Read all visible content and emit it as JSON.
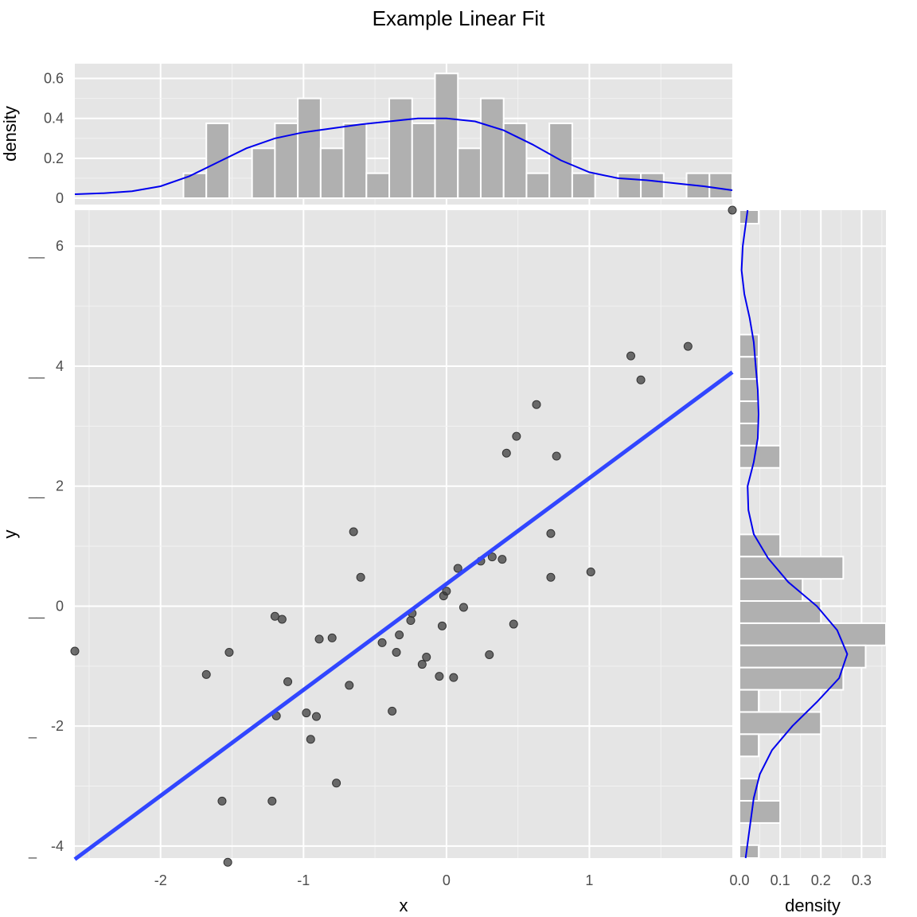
{
  "chart_data": [
    {
      "type": "scatter",
      "panel": "main",
      "title": "Example Linear Fit",
      "xlabel": "x",
      "ylabel": "y",
      "xlim": [
        -2.6,
        2.0
      ],
      "ylim": [
        -4.2,
        6.6
      ],
      "x_ticks": [
        -2,
        -1,
        0,
        1
      ],
      "y_ticks": [
        -4,
        -2,
        0,
        2,
        4,
        6
      ],
      "x_tick_labels": [
        "-2",
        "-1",
        "0",
        "1"
      ],
      "y_tick_labels": [
        "-4",
        "-2",
        "0",
        "2",
        "4",
        "6"
      ],
      "y_tick_prefix": [
        "_",
        "_",
        "__",
        "__",
        "__",
        "__"
      ],
      "grid": true,
      "point_color": "#333333",
      "points": [
        {
          "x": -2.6,
          "y": -0.75
        },
        {
          "x": -1.68,
          "y": -1.14
        },
        {
          "x": -1.52,
          "y": -0.77
        },
        {
          "x": -1.57,
          "y": -3.25
        },
        {
          "x": -1.53,
          "y": -4.27
        },
        {
          "x": -1.22,
          "y": -3.25
        },
        {
          "x": -1.2,
          "y": -0.17
        },
        {
          "x": -1.15,
          "y": -0.22
        },
        {
          "x": -1.11,
          "y": -1.26
        },
        {
          "x": -1.19,
          "y": -1.83
        },
        {
          "x": -0.98,
          "y": -1.78
        },
        {
          "x": -0.95,
          "y": -2.22
        },
        {
          "x": -0.91,
          "y": -1.84
        },
        {
          "x": -0.89,
          "y": -0.55
        },
        {
          "x": -0.8,
          "y": -0.53
        },
        {
          "x": -0.77,
          "y": -2.95
        },
        {
          "x": -0.68,
          "y": -1.32
        },
        {
          "x": -0.65,
          "y": 1.24
        },
        {
          "x": -0.6,
          "y": 0.48
        },
        {
          "x": -0.45,
          "y": -0.61
        },
        {
          "x": -0.38,
          "y": -1.75
        },
        {
          "x": -0.35,
          "y": -0.77
        },
        {
          "x": -0.33,
          "y": -0.48
        },
        {
          "x": -0.25,
          "y": -0.24
        },
        {
          "x": -0.24,
          "y": -0.12
        },
        {
          "x": -0.17,
          "y": -0.97
        },
        {
          "x": -0.14,
          "y": -0.85
        },
        {
          "x": -0.05,
          "y": -1.17
        },
        {
          "x": -0.03,
          "y": -0.33
        },
        {
          "x": -0.02,
          "y": 0.17
        },
        {
          "x": 0.0,
          "y": 0.25
        },
        {
          "x": 0.05,
          "y": -1.19
        },
        {
          "x": 0.08,
          "y": 0.63
        },
        {
          "x": 0.12,
          "y": -0.02
        },
        {
          "x": 0.24,
          "y": 0.75
        },
        {
          "x": 0.3,
          "y": -0.81
        },
        {
          "x": 0.32,
          "y": 0.82
        },
        {
          "x": 0.39,
          "y": 0.78
        },
        {
          "x": 0.42,
          "y": 2.55
        },
        {
          "x": 0.47,
          "y": -0.3
        },
        {
          "x": 0.49,
          "y": 2.83
        },
        {
          "x": 0.63,
          "y": 3.36
        },
        {
          "x": 0.73,
          "y": 1.21
        },
        {
          "x": 0.73,
          "y": 0.48
        },
        {
          "x": 0.77,
          "y": 2.5
        },
        {
          "x": 1.01,
          "y": 0.57
        },
        {
          "x": 1.29,
          "y": 4.17
        },
        {
          "x": 1.36,
          "y": 3.77
        },
        {
          "x": 1.69,
          "y": 4.33
        },
        {
          "x": 2.0,
          "y": 6.6
        }
      ],
      "fit_line": {
        "color": "#3146ff",
        "x": [
          -2.6,
          2.0
        ],
        "y": [
          -4.22,
          3.9
        ]
      }
    },
    {
      "type": "bar",
      "panel": "top-marginal",
      "ylabel": "density",
      "xlim": [
        -2.6,
        2.0
      ],
      "ylim": [
        0,
        0.65
      ],
      "y_ticks": [
        0,
        0.2,
        0.4,
        0.6
      ],
      "y_tick_labels": [
        "0",
        "0.2",
        "0.4",
        "0.6"
      ],
      "bin_width": 0.16,
      "bar_color": "#b0b0b0",
      "bins": [
        {
          "x": -1.76,
          "density": 0.125
        },
        {
          "x": -1.6,
          "density": 0.375
        },
        {
          "x": -1.28,
          "density": 0.25
        },
        {
          "x": -1.12,
          "density": 0.375
        },
        {
          "x": -0.96,
          "density": 0.5
        },
        {
          "x": -0.8,
          "density": 0.25
        },
        {
          "x": -0.64,
          "density": 0.375
        },
        {
          "x": -0.48,
          "density": 0.125
        },
        {
          "x": -0.32,
          "density": 0.5
        },
        {
          "x": -0.16,
          "density": 0.375
        },
        {
          "x": 0.0,
          "density": 0.625
        },
        {
          "x": 0.16,
          "density": 0.25
        },
        {
          "x": 0.32,
          "density": 0.5
        },
        {
          "x": 0.48,
          "density": 0.375
        },
        {
          "x": 0.64,
          "density": 0.125
        },
        {
          "x": 0.8,
          "density": 0.375
        },
        {
          "x": 0.96,
          "density": 0.125
        },
        {
          "x": 1.28,
          "density": 0.125
        },
        {
          "x": 1.44,
          "density": 0.125
        },
        {
          "x": 1.76,
          "density": 0.125
        },
        {
          "x": 1.92,
          "density": 0.125
        }
      ],
      "density_curve": {
        "color": "#0000ee",
        "x": [
          -2.6,
          -2.4,
          -2.2,
          -2.0,
          -1.8,
          -1.6,
          -1.4,
          -1.2,
          -1.0,
          -0.8,
          -0.6,
          -0.4,
          -0.2,
          0.0,
          0.2,
          0.4,
          0.6,
          0.8,
          1.0,
          1.2,
          1.4,
          1.6,
          1.8,
          2.0
        ],
        "y": [
          0.02,
          0.025,
          0.035,
          0.06,
          0.11,
          0.18,
          0.25,
          0.3,
          0.33,
          0.35,
          0.37,
          0.385,
          0.4,
          0.4,
          0.385,
          0.34,
          0.27,
          0.19,
          0.13,
          0.1,
          0.09,
          0.075,
          0.06,
          0.04
        ]
      }
    },
    {
      "type": "bar",
      "panel": "right-marginal",
      "orientation": "horizontal",
      "xlabel": "density",
      "xlim": [
        0,
        0.36
      ],
      "x_ticks": [
        0,
        0.1,
        0.2,
        0.3
      ],
      "x_tick_labels": [
        "0.0",
        "0.1",
        "0.2",
        "0.3"
      ],
      "ylim": [
        -4.2,
        6.6
      ],
      "bin_width": 0.37,
      "bar_color": "#b0b0b0",
      "bins": [
        {
          "y": 6.56,
          "density": 0.047
        },
        {
          "y": 4.34,
          "density": 0.047
        },
        {
          "y": 3.97,
          "density": 0.047
        },
        {
          "y": 3.6,
          "density": 0.047
        },
        {
          "y": 3.23,
          "density": 0.047
        },
        {
          "y": 2.86,
          "density": 0.047
        },
        {
          "y": 2.49,
          "density": 0.1
        },
        {
          "y": 1.01,
          "density": 0.1
        },
        {
          "y": 0.64,
          "density": 0.255
        },
        {
          "y": 0.27,
          "density": 0.155
        },
        {
          "y": -0.1,
          "density": 0.2
        },
        {
          "y": -0.47,
          "density": 0.36
        },
        {
          "y": -0.84,
          "density": 0.31
        },
        {
          "y": -1.21,
          "density": 0.255
        },
        {
          "y": -1.58,
          "density": 0.047
        },
        {
          "y": -1.95,
          "density": 0.2
        },
        {
          "y": -2.32,
          "density": 0.047
        },
        {
          "y": -3.06,
          "density": 0.047
        },
        {
          "y": -3.43,
          "density": 0.1
        },
        {
          "y": -4.17,
          "density": 0.047
        }
      ],
      "density_curve": {
        "color": "#0000ee",
        "y": [
          -4.2,
          -3.7,
          -3.2,
          -2.8,
          -2.4,
          -2.0,
          -1.6,
          -1.2,
          -0.8,
          -0.4,
          0.0,
          0.4,
          0.8,
          1.2,
          1.6,
          2.0,
          2.4,
          2.8,
          3.2,
          3.6,
          4.0,
          4.4,
          4.8,
          5.2,
          5.6,
          6.0,
          6.6
        ],
        "x": [
          0.015,
          0.025,
          0.035,
          0.05,
          0.08,
          0.13,
          0.19,
          0.245,
          0.265,
          0.24,
          0.19,
          0.12,
          0.07,
          0.035,
          0.022,
          0.02,
          0.035,
          0.045,
          0.047,
          0.045,
          0.04,
          0.035,
          0.025,
          0.012,
          0.005,
          0.008,
          0.02
        ]
      }
    }
  ]
}
